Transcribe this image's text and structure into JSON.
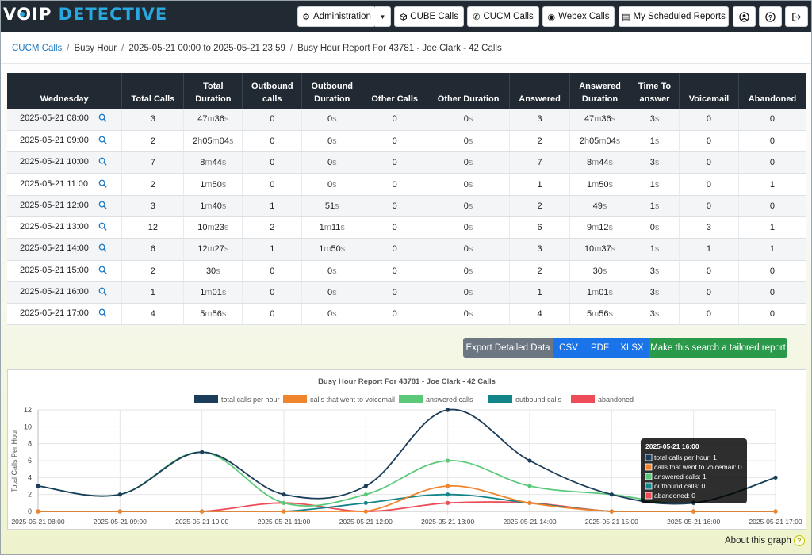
{
  "app": {
    "logo_part1": "V",
    "logo_part2": "IP",
    "logo_part3": "DETECTIVE"
  },
  "nav": {
    "administration": "Administration",
    "cube_calls": "CUBE Calls",
    "cucm_calls": "CUCM Calls",
    "webex_calls": "Webex Calls",
    "scheduled_reports": "My Scheduled Reports"
  },
  "breadcrumb": {
    "link": "CUCM Calls",
    "item1": "Busy Hour",
    "item2": "2025-05-21 00:00 to 2025-05-21 23:59",
    "item3": "Busy Hour Report For 43781 - Joe Clark - 42 Calls"
  },
  "table": {
    "headers": [
      "Wednesday",
      "Total Calls",
      "Total Duration",
      "Outbound calls",
      "Outbound Duration",
      "Other Calls",
      "Other Duration",
      "Answered",
      "Answered Duration",
      "Time To answer",
      "Voicemail",
      "Abandoned"
    ],
    "rows": [
      [
        "2025-05-21 08:00",
        "3",
        "47m36s",
        "0",
        "0s",
        "0",
        "0s",
        "3",
        "47m36s",
        "3s",
        "0",
        "0"
      ],
      [
        "2025-05-21 09:00",
        "2",
        "2h05m04s",
        "0",
        "0s",
        "0",
        "0s",
        "2",
        "2h05m04s",
        "1s",
        "0",
        "0"
      ],
      [
        "2025-05-21 10:00",
        "7",
        "8m44s",
        "0",
        "0s",
        "0",
        "0s",
        "7",
        "8m44s",
        "3s",
        "0",
        "0"
      ],
      [
        "2025-05-21 11:00",
        "2",
        "1m50s",
        "0",
        "0s",
        "0",
        "0s",
        "1",
        "1m50s",
        "1s",
        "0",
        "1"
      ],
      [
        "2025-05-21 12:00",
        "3",
        "1m40s",
        "1",
        "51s",
        "0",
        "0s",
        "2",
        "49s",
        "1s",
        "0",
        "0"
      ],
      [
        "2025-05-21 13:00",
        "12",
        "10m23s",
        "2",
        "1m11s",
        "0",
        "0s",
        "6",
        "9m12s",
        "0s",
        "3",
        "1"
      ],
      [
        "2025-05-21 14:00",
        "6",
        "12m27s",
        "1",
        "1m50s",
        "0",
        "0s",
        "3",
        "10m37s",
        "1s",
        "1",
        "1"
      ],
      [
        "2025-05-21 15:00",
        "2",
        "30s",
        "0",
        "0s",
        "0",
        "0s",
        "2",
        "30s",
        "3s",
        "0",
        "0"
      ],
      [
        "2025-05-21 16:00",
        "1",
        "1m01s",
        "0",
        "0s",
        "0",
        "0s",
        "1",
        "1m01s",
        "3s",
        "0",
        "0"
      ],
      [
        "2025-05-21 17:00",
        "4",
        "5m56s",
        "0",
        "0s",
        "0",
        "0s",
        "4",
        "5m56s",
        "3s",
        "0",
        "0"
      ]
    ]
  },
  "actions": {
    "export": "Export Detailed Data",
    "csv": "CSV",
    "pdf": "PDF",
    "xlsx": "XLSX",
    "tailored": "Make this search a tailored report"
  },
  "chart_data": {
    "type": "line",
    "title": "Busy Hour Report For 43781 - Joe Clark - 42 Calls",
    "ylabel": "Total Calls Per Hour",
    "xlabel": "",
    "ylim": [
      0,
      12
    ],
    "yticks": [
      0,
      2,
      4,
      6,
      8,
      10,
      12
    ],
    "grid": true,
    "legend_position": "top",
    "x": [
      "2025-05-21 08:00",
      "2025-05-21 09:00",
      "2025-05-21 10:00",
      "2025-05-21 11:00",
      "2025-05-21 12:00",
      "2025-05-21 13:00",
      "2025-05-21 14:00",
      "2025-05-21 15:00",
      "2025-05-21 16:00",
      "2025-05-21 17:00"
    ],
    "series": [
      {
        "name": "total calls per hour",
        "color": "#1b3d5a",
        "values": [
          3,
          2,
          7,
          2,
          3,
          12,
          6,
          2,
          1,
          4
        ]
      },
      {
        "name": "calls that went to voicemail",
        "color": "#f0852d",
        "values": [
          0,
          0,
          0,
          0,
          0,
          3,
          1,
          0,
          0,
          0
        ]
      },
      {
        "name": "answered calls",
        "color": "#5cc97a",
        "values": [
          3,
          2,
          7,
          1,
          2,
          6,
          3,
          2,
          1,
          4
        ]
      },
      {
        "name": "outbound calls",
        "color": "#12858a",
        "values": [
          0,
          0,
          0,
          0,
          1,
          2,
          1,
          0,
          0,
          0
        ]
      },
      {
        "name": "abandoned",
        "color": "#ee4d57",
        "values": [
          0,
          0,
          0,
          1,
          0,
          1,
          1,
          0,
          0,
          0
        ]
      }
    ],
    "tooltip": {
      "title": "2025-05-21 16:00",
      "lines": [
        "total calls per hour: 1",
        "calls that went to voicemail: 0",
        "answered calls: 1",
        "outbound calls: 0",
        "abandoned: 0"
      ]
    }
  },
  "footer": {
    "about": "About this graph",
    "help_glyph": "?"
  }
}
